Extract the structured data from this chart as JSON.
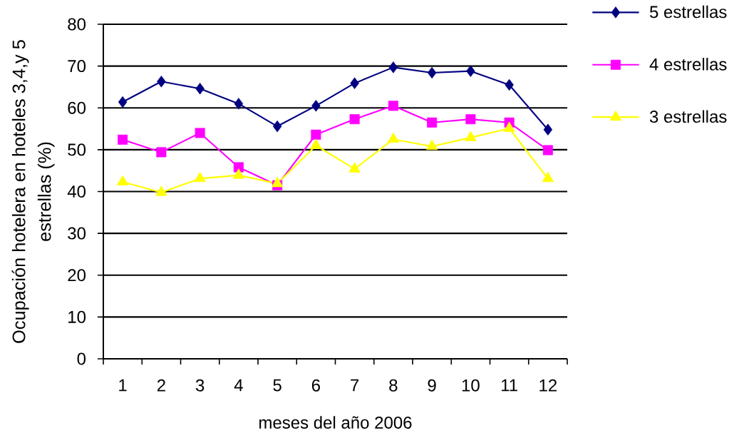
{
  "chart_data": {
    "type": "line",
    "xlabel": "meses del año 2006",
    "ylabel": "Ocupación hotelera en hoteles 3,4,y 5 estrellas (%)",
    "categories": [
      "1",
      "2",
      "3",
      "4",
      "5",
      "6",
      "7",
      "8",
      "9",
      "10",
      "11",
      "12"
    ],
    "series": [
      {
        "name": "5 estrellas",
        "color": "#000080",
        "marker": "diamond",
        "values": [
          61.4,
          66.3,
          64.6,
          61.0,
          55.6,
          60.5,
          65.9,
          69.7,
          68.4,
          68.8,
          65.5,
          54.8
        ]
      },
      {
        "name": "4 estrellas",
        "color": "#ff00ff",
        "marker": "square",
        "values": [
          52.4,
          49.4,
          54.0,
          45.8,
          41.5,
          53.6,
          57.3,
          60.5,
          56.5,
          57.3,
          56.5,
          49.9
        ]
      },
      {
        "name": "3 estrellas",
        "color": "#ffff00",
        "marker": "triangle",
        "values": [
          42.3,
          39.8,
          43.1,
          43.9,
          41.9,
          51.0,
          45.4,
          52.5,
          50.8,
          52.9,
          55.1,
          43.1
        ]
      }
    ],
    "ylim": [
      0,
      80
    ],
    "yticks": [
      0,
      10,
      20,
      30,
      40,
      50,
      60,
      70,
      80
    ],
    "grid": "y",
    "legend": "top right",
    "line_style": "solid"
  }
}
